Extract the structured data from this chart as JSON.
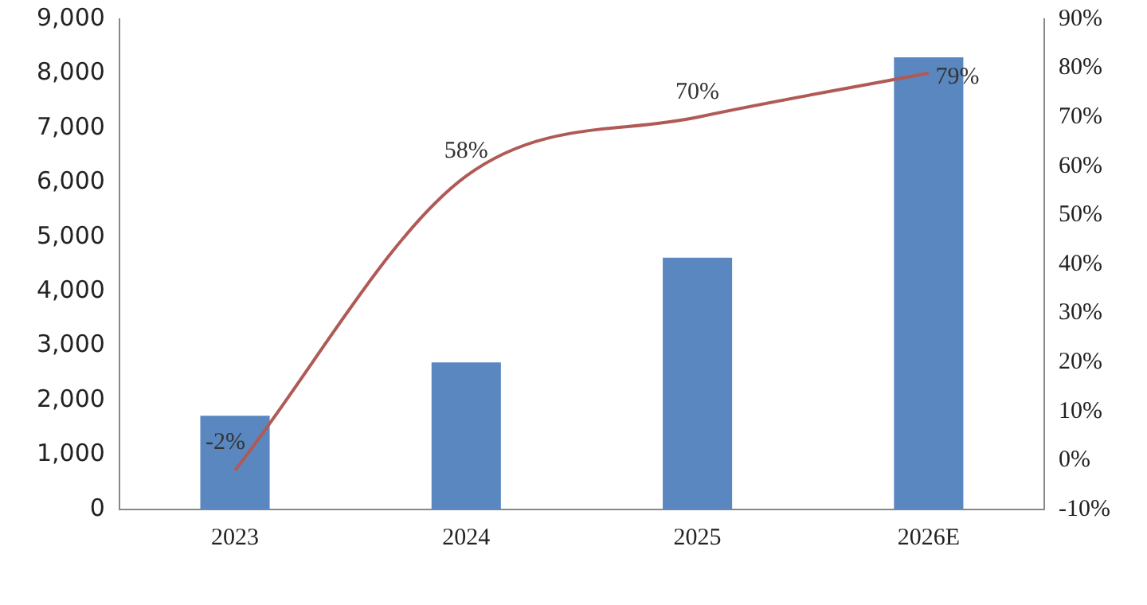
{
  "chart_data": {
    "type": "bar",
    "categories": [
      "2023",
      "2024",
      "2025",
      "2026E"
    ],
    "series": [
      {
        "color": "#5a87bf",
        "values": [
          1720,
          2700,
          4620,
          8300
        ]
      },
      {
        "type": "line",
        "axis": "y2",
        "color": "#b05a55",
        "values": [
          -2,
          58,
          70,
          79
        ],
        "value_labels": [
          "-2%",
          "58%",
          "70%",
          "79%"
        ]
      }
    ],
    "ylim": [
      0,
      9000
    ],
    "yticks": [
      {
        "value": 0,
        "label": "0"
      },
      {
        "value": 1000,
        "label": "1,000"
      },
      {
        "value": 2000,
        "label": "2,000"
      },
      {
        "value": 3000,
        "label": "3,000"
      },
      {
        "value": 4000,
        "label": "4,000"
      },
      {
        "value": 5000,
        "label": "5,000"
      },
      {
        "value": 6000,
        "label": "6,000"
      },
      {
        "value": 7000,
        "label": "7,000"
      },
      {
        "value": 8000,
        "label": "8,000"
      },
      {
        "value": 9000,
        "label": "9,000"
      }
    ],
    "y2lim": [
      -10,
      90
    ],
    "y2ticks": [
      {
        "value": -10,
        "label": "-10%"
      },
      {
        "value": 0,
        "label": "0%"
      },
      {
        "value": 10,
        "label": "10%"
      },
      {
        "value": 20,
        "label": "20%"
      },
      {
        "value": 30,
        "label": "30%"
      },
      {
        "value": 40,
        "label": "40%"
      },
      {
        "value": 50,
        "label": "50%"
      },
      {
        "value": 60,
        "label": "60%"
      },
      {
        "value": 70,
        "label": "70%"
      },
      {
        "value": 80,
        "label": "80%"
      },
      {
        "value": 90,
        "label": "90%"
      }
    ],
    "grid": false,
    "legend": false,
    "marker": "none",
    "line_style": "solid"
  }
}
